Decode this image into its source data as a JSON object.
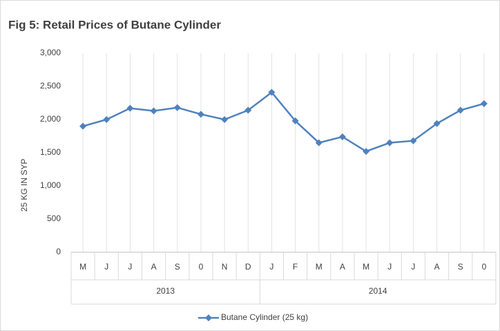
{
  "chart_data": {
    "type": "line",
    "title": "Fig 5: Retail Prices of Butane Cylinder",
    "y_label": "25 KG IN SYP",
    "groups": [
      {
        "name": "2013",
        "categories": [
          "M",
          "J",
          "J",
          "A",
          "S",
          "0",
          "N",
          "D"
        ]
      },
      {
        "name": "2014",
        "categories": [
          "J",
          "F",
          "M",
          "A",
          "M",
          "J",
          "J",
          "A",
          "S",
          "0"
        ]
      }
    ],
    "series": [
      {
        "name": "Butane Cylinder (25 kg)",
        "color": "#4f81bd",
        "values": [
          1900,
          2000,
          2170,
          2130,
          2180,
          2080,
          2000,
          2140,
          2410,
          1980,
          1650,
          1740,
          1520,
          1650,
          1680,
          1940,
          2140,
          2240
        ]
      }
    ],
    "ylim": [
      0,
      3000
    ],
    "yticks": [
      0,
      500,
      {
        "value": 1000,
        "label": "1,000"
      },
      {
        "value": 1500,
        "label": "1,500"
      },
      {
        "value": 2000,
        "label": "2,000"
      },
      {
        "value": 2500,
        "label": "2,500"
      },
      {
        "value": 3000,
        "label": "3,000"
      }
    ],
    "grid": "x",
    "legend": "bottom"
  }
}
